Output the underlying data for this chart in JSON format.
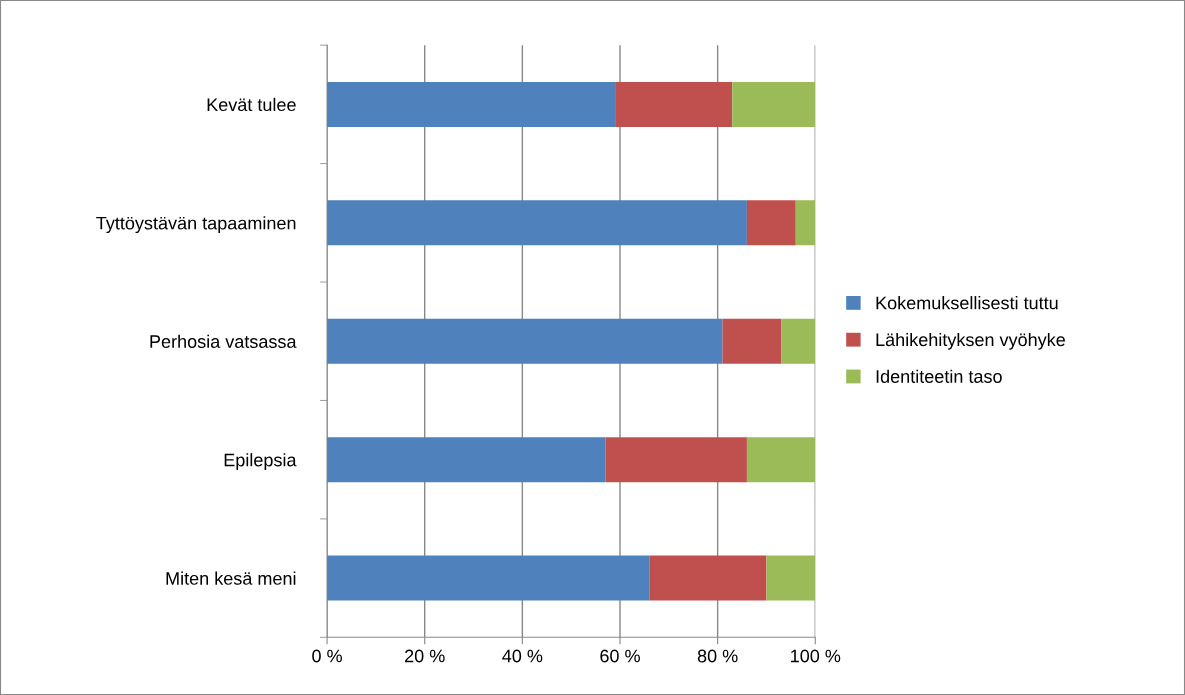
{
  "chart_data": {
    "type": "bar",
    "orientation": "horizontal",
    "stacked": true,
    "categories": [
      "Kevät tulee",
      "Tyttöystävän tapaaminen",
      "Perhosia vatsassa",
      "Epilepsia",
      "Miten kesä meni"
    ],
    "series": [
      {
        "name": "Kokemuksellisesti tuttu",
        "color": "#4f81bd",
        "values": [
          59,
          86,
          81,
          57,
          66
        ]
      },
      {
        "name": "Lähikehityksen vyöhyke",
        "color": "#c0504d",
        "values": [
          24,
          10,
          12,
          29,
          24
        ]
      },
      {
        "name": "Identiteetin taso",
        "color": "#9bbb59",
        "values": [
          17,
          4,
          7,
          14,
          10
        ]
      }
    ],
    "xlim": [
      0,
      100
    ],
    "xticks": [
      {
        "value": 0,
        "label": "0 %"
      },
      {
        "value": 20,
        "label": "20 %"
      },
      {
        "value": 40,
        "label": "40 %"
      },
      {
        "value": 60,
        "label": "60 %"
      },
      {
        "value": 80,
        "label": "80 %"
      },
      {
        "value": 100,
        "label": "100 %"
      }
    ],
    "grid": "x",
    "legend": "right"
  }
}
